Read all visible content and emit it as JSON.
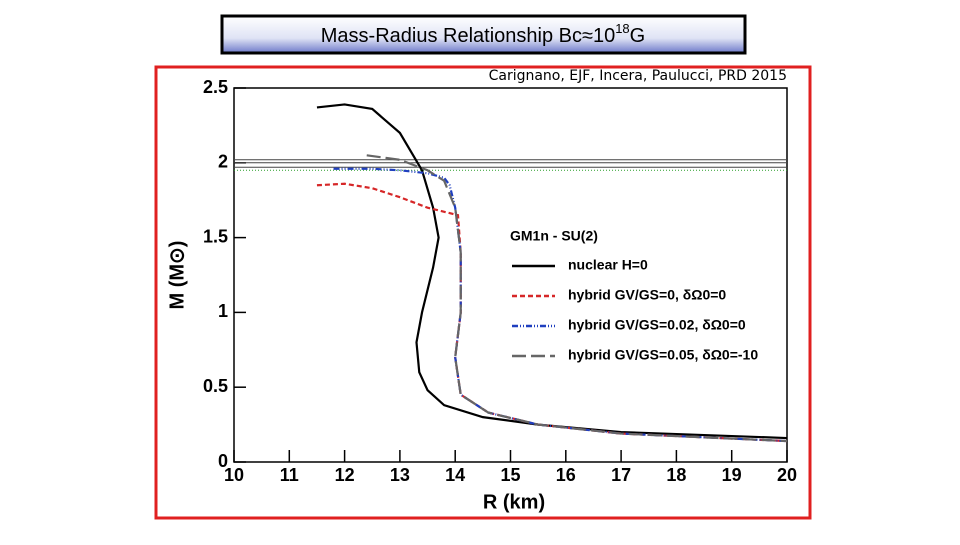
{
  "chart_data": {
    "type": "line",
    "title": "Mass-Radius Relationship Bc≈10",
    "title_superscript": "18",
    "title_suffix": "G",
    "citation": "Carignano, EJF, Incera, Paulucci, PRD 2015",
    "x_label": "R (km)",
    "y_label": "M (M⊙)",
    "legend_title": "GM1n - SU(2)",
    "xlim": [
      10,
      20
    ],
    "xticks": [
      10,
      11,
      12,
      13,
      14,
      15,
      16,
      17,
      18,
      19,
      20
    ],
    "ylim": [
      0,
      2.5
    ],
    "yticks": [
      0,
      0.5,
      1,
      1.5,
      2,
      2.5
    ],
    "reference_lines": [
      {
        "value": 2.02,
        "color": "#444444"
      },
      {
        "value": 2.0,
        "color": "#444444"
      },
      {
        "value": 1.97,
        "color": "#444444"
      },
      {
        "value": 1.95,
        "color": "#2a9d2a"
      }
    ],
    "series": [
      {
        "name": "nuclear H=0",
        "color": "#000000",
        "dash": "solid",
        "x": [
          11.5,
          12.0,
          12.5,
          13.0,
          13.4,
          13.6,
          13.7,
          13.6,
          13.4,
          13.3,
          13.35,
          13.5,
          13.8,
          14.5,
          15.5,
          17.0,
          18.5,
          20.0
        ],
        "values": [
          2.37,
          2.39,
          2.36,
          2.2,
          1.95,
          1.7,
          1.5,
          1.3,
          1.0,
          0.8,
          0.6,
          0.48,
          0.38,
          0.3,
          0.25,
          0.2,
          0.18,
          0.16
        ]
      },
      {
        "name": "hybrid GV/GS=0, δΩ0=0",
        "color": "#d62728",
        "dash": "dashed",
        "x": [
          11.5,
          12.0,
          12.5,
          13.0,
          13.5,
          14.05,
          14.1,
          14.1,
          14.0,
          14.1,
          14.6,
          15.5,
          17.0,
          20.0
        ],
        "values": [
          1.85,
          1.86,
          1.83,
          1.77,
          1.7,
          1.65,
          1.4,
          1.0,
          0.7,
          0.45,
          0.33,
          0.25,
          0.19,
          0.14
        ]
      },
      {
        "name": "hybrid GV/GS=0.02, δΩ0=0",
        "color": "#1f3fbf",
        "dash": "dashdot",
        "x": [
          11.8,
          12.5,
          13.0,
          13.5,
          13.8,
          13.9,
          14.0,
          14.1,
          14.1,
          14.0,
          14.1,
          14.6,
          15.5,
          17.0,
          20.0
        ],
        "values": [
          1.96,
          1.96,
          1.95,
          1.93,
          1.9,
          1.85,
          1.7,
          1.4,
          1.0,
          0.7,
          0.45,
          0.33,
          0.25,
          0.19,
          0.14
        ]
      },
      {
        "name": "hybrid GV/GS=0.05, δΩ0=-10",
        "color": "#666666",
        "dash": "longdash",
        "x": [
          12.4,
          13.0,
          13.5,
          13.8,
          14.0,
          14.1,
          14.1,
          14.0,
          14.1,
          14.6,
          15.5,
          17.0,
          20.0
        ],
        "values": [
          2.05,
          2.02,
          1.95,
          1.88,
          1.7,
          1.4,
          1.0,
          0.7,
          0.45,
          0.33,
          0.25,
          0.19,
          0.14
        ]
      }
    ]
  }
}
